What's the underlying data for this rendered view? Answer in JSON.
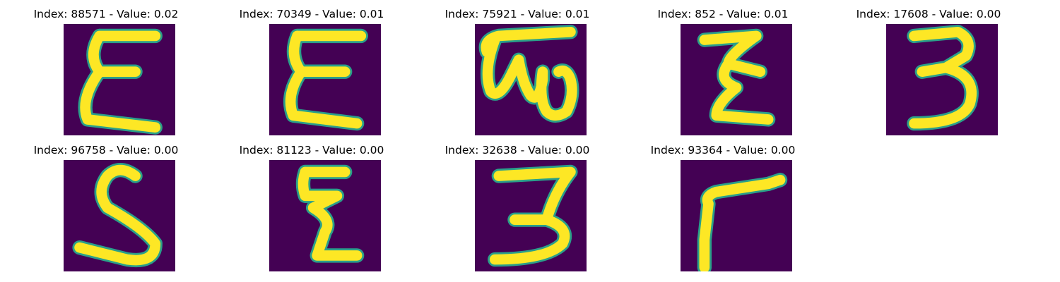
{
  "colors": {
    "background": "#440154",
    "stroke_core": "#fde725",
    "stroke_edge": "#2a9f8a"
  },
  "panels": [
    {
      "title": "Index: 88571 - Value: 0.02",
      "glyph": "script epsilon-like character"
    },
    {
      "title": "Index: 70349 - Value: 0.01",
      "glyph": "script epsilon-like character"
    },
    {
      "title": "Index: 75921 - Value: 0.01",
      "glyph": "looped w-like character"
    },
    {
      "title": "Index: 852 - Value: 0.01",
      "glyph": "script z-like character"
    },
    {
      "title": "Index: 17608 - Value: 0.00",
      "glyph": "digit 3"
    },
    {
      "title": "Index: 96758 - Value: 0.00",
      "glyph": "letter S"
    },
    {
      "title": "Index: 81123 - Value: 0.00",
      "glyph": "script z-like character"
    },
    {
      "title": "Index: 32638 - Value: 0.00",
      "glyph": "digit 3"
    },
    {
      "title": "Index: 93364 - Value: 0.00",
      "glyph": "Γ-like character"
    }
  ]
}
